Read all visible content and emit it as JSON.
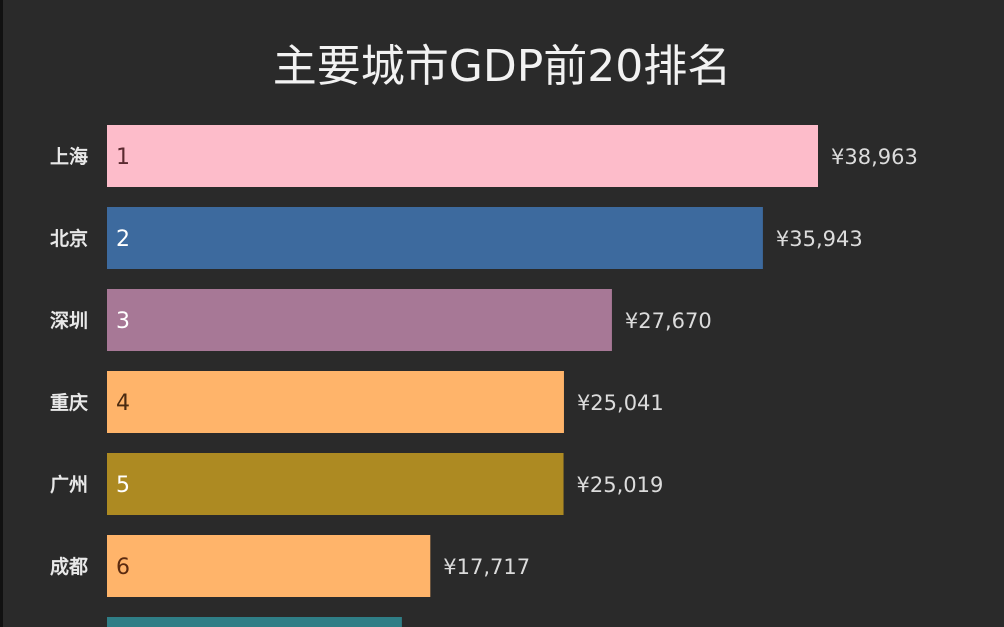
{
  "chart_data": {
    "type": "bar",
    "orientation": "horizontal",
    "title": "主要城市GDP前20排名",
    "value_prefix": "¥",
    "categories": [
      "上海",
      "北京",
      "深圳",
      "重庆",
      "广州",
      "成都",
      ""
    ],
    "ranks": [
      "1",
      "2",
      "3",
      "4",
      "5",
      "6",
      ""
    ],
    "values": [
      38963,
      35943,
      27670,
      25041,
      25019,
      17717,
      16160
    ],
    "value_labels": [
      "¥38,963",
      "¥35,943",
      "¥27,670",
      "¥25,041",
      "¥25,019",
      "¥17,717",
      ""
    ],
    "colors": [
      "#fdbcca",
      "#3d6a9e",
      "#a77896",
      "#ffb46a",
      "#ad8a22",
      "#ffb46a",
      "#2f7e86"
    ],
    "rank_text_colors": [
      "#5a2a30",
      "#ffffff",
      "#ffffff",
      "#4a2a10",
      "#ffffff",
      "#5a2a10",
      "#ffffff"
    ],
    "xlim": [
      0,
      40000
    ],
    "grid": false,
    "legend": "none"
  }
}
